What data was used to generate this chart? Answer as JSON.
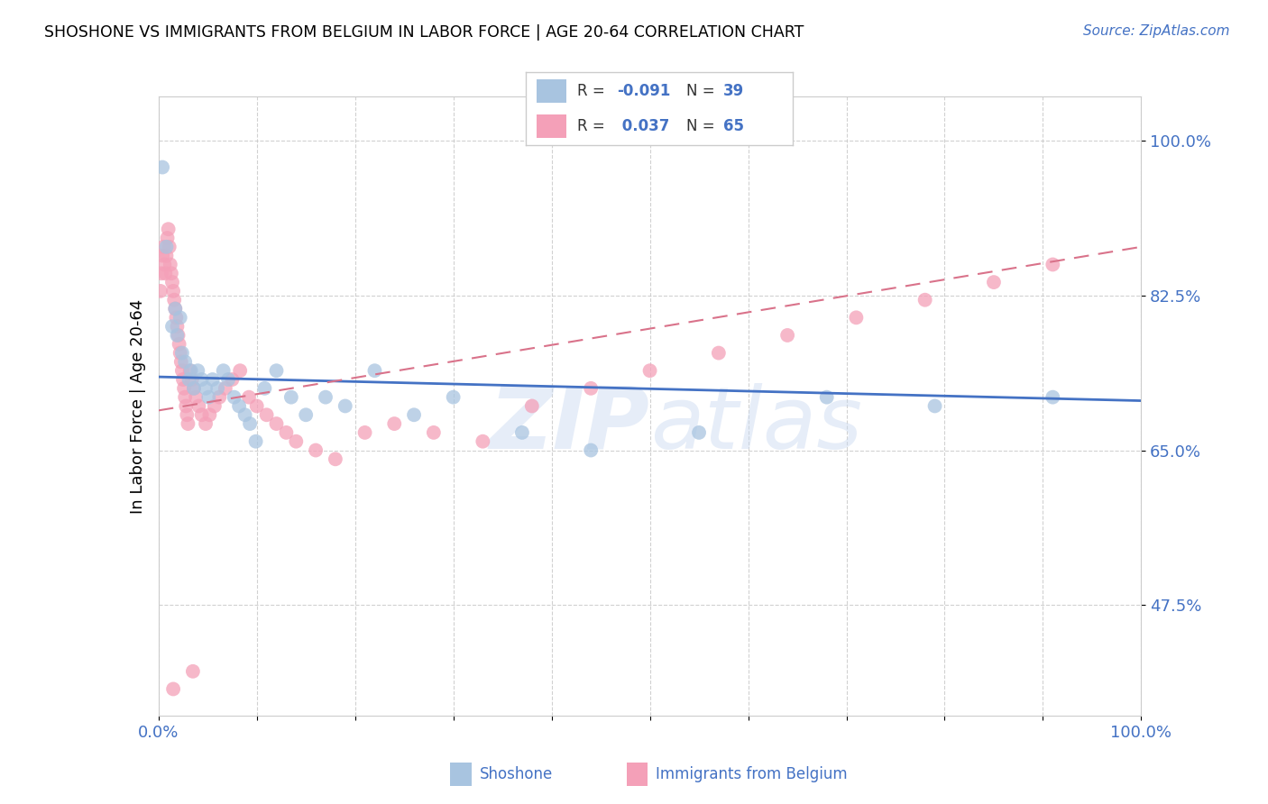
{
  "title": "SHOSHONE VS IMMIGRANTS FROM BELGIUM IN LABOR FORCE | AGE 20-64 CORRELATION CHART",
  "source": "Source: ZipAtlas.com",
  "ylabel": "In Labor Force | Age 20-64",
  "xlim": [
    0.0,
    1.0
  ],
  "ylim": [
    0.35,
    1.05
  ],
  "yticks": [
    0.475,
    0.65,
    0.825,
    1.0
  ],
  "ytick_labels": [
    "47.5%",
    "65.0%",
    "82.5%",
    "100.0%"
  ],
  "xticks": [
    0.0,
    0.1,
    0.2,
    0.3,
    0.4,
    0.5,
    0.6,
    0.7,
    0.8,
    0.9,
    1.0
  ],
  "xtick_labels": [
    "0.0%",
    "",
    "",
    "",
    "",
    "",
    "",
    "",
    "",
    "",
    "100.0%"
  ],
  "shoshone_R": -0.091,
  "shoshone_N": 39,
  "belgium_R": 0.037,
  "belgium_N": 65,
  "shoshone_color": "#a8c4e0",
  "belgium_color": "#f4a0b8",
  "shoshone_line_color": "#4472c4",
  "belgium_line_color": "#d9728a",
  "watermark": "ZIPatlas",
  "shoshone_line_x0": 0.0,
  "shoshone_line_y0": 0.733,
  "shoshone_line_x1": 1.0,
  "shoshone_line_y1": 0.706,
  "belgium_line_x0": 0.0,
  "belgium_line_y0": 0.695,
  "belgium_line_x1": 1.0,
  "belgium_line_y1": 0.88,
  "shoshone_x": [
    0.004,
    0.008,
    0.014,
    0.017,
    0.019,
    0.022,
    0.024,
    0.027,
    0.031,
    0.033,
    0.036,
    0.04,
    0.044,
    0.048,
    0.051,
    0.055,
    0.06,
    0.066,
    0.071,
    0.077,
    0.082,
    0.088,
    0.093,
    0.099,
    0.108,
    0.12,
    0.135,
    0.15,
    0.17,
    0.19,
    0.22,
    0.26,
    0.3,
    0.37,
    0.44,
    0.55,
    0.68,
    0.79,
    0.91
  ],
  "shoshone_y": [
    0.97,
    0.88,
    0.79,
    0.81,
    0.78,
    0.8,
    0.76,
    0.75,
    0.73,
    0.74,
    0.72,
    0.74,
    0.73,
    0.72,
    0.71,
    0.73,
    0.72,
    0.74,
    0.73,
    0.71,
    0.7,
    0.69,
    0.68,
    0.66,
    0.72,
    0.74,
    0.71,
    0.69,
    0.71,
    0.7,
    0.74,
    0.69,
    0.71,
    0.67,
    0.65,
    0.67,
    0.71,
    0.7,
    0.71
  ],
  "belgium_x": [
    0.002,
    0.003,
    0.004,
    0.005,
    0.006,
    0.007,
    0.008,
    0.009,
    0.01,
    0.011,
    0.012,
    0.013,
    0.014,
    0.015,
    0.016,
    0.017,
    0.018,
    0.019,
    0.02,
    0.021,
    0.022,
    0.023,
    0.024,
    0.025,
    0.026,
    0.027,
    0.028,
    0.029,
    0.03,
    0.032,
    0.034,
    0.036,
    0.038,
    0.041,
    0.044,
    0.048,
    0.052,
    0.057,
    0.062,
    0.068,
    0.075,
    0.083,
    0.092,
    0.1,
    0.11,
    0.12,
    0.13,
    0.14,
    0.16,
    0.18,
    0.21,
    0.24,
    0.28,
    0.33,
    0.38,
    0.44,
    0.5,
    0.57,
    0.64,
    0.71,
    0.78,
    0.85,
    0.91,
    0.015,
    0.035
  ],
  "belgium_y": [
    0.83,
    0.85,
    0.87,
    0.88,
    0.86,
    0.85,
    0.87,
    0.89,
    0.9,
    0.88,
    0.86,
    0.85,
    0.84,
    0.83,
    0.82,
    0.81,
    0.8,
    0.79,
    0.78,
    0.77,
    0.76,
    0.75,
    0.74,
    0.73,
    0.72,
    0.71,
    0.7,
    0.69,
    0.68,
    0.74,
    0.73,
    0.72,
    0.71,
    0.7,
    0.69,
    0.68,
    0.69,
    0.7,
    0.71,
    0.72,
    0.73,
    0.74,
    0.71,
    0.7,
    0.69,
    0.68,
    0.67,
    0.66,
    0.65,
    0.64,
    0.67,
    0.68,
    0.67,
    0.66,
    0.7,
    0.72,
    0.74,
    0.76,
    0.78,
    0.8,
    0.82,
    0.84,
    0.86,
    0.38,
    0.4
  ]
}
